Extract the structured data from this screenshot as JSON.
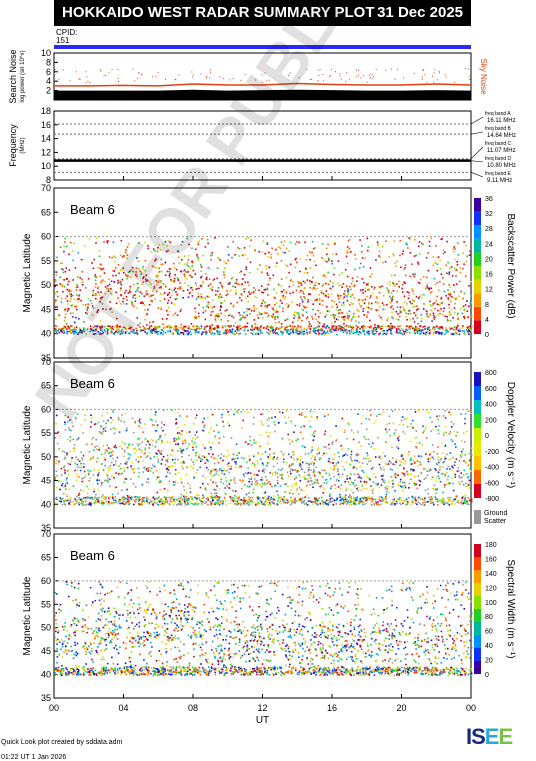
{
  "header": {
    "title": "HOKKAIDO WEST RADAR SUMMARY PLOT",
    "date": "31 Dec 2025"
  },
  "cpid": {
    "label": "CPID:",
    "value": "151"
  },
  "watermark": "NOT FOR PUBLICATION",
  "footer": {
    "credit": "Quick Look plot created by sddata.adm",
    "time": "01:22 UT 1 Jan 2026"
  },
  "logo": {
    "part1": "IS",
    "part2": "E",
    "part3": "E"
  },
  "chart_data": [
    {
      "type": "line",
      "name": "noise",
      "ylabel": "Search Noise",
      "ylabel_sub": "log power (sn 10^x)",
      "right_label": "Sky Noise",
      "yticks": [
        "2",
        "4",
        "6",
        "8",
        "10"
      ],
      "ylim": [
        0,
        10
      ],
      "xlim": [
        0,
        24
      ],
      "series": [
        {
          "name": "search",
          "x": [
            0,
            2,
            4,
            6,
            8,
            10,
            12,
            14,
            16,
            18,
            20,
            22,
            24
          ],
          "values": [
            2,
            2,
            2,
            2,
            2.2,
            2,
            2.1,
            2.2,
            2.1,
            2,
            2,
            2.1,
            2
          ]
        },
        {
          "name": "sky",
          "x": [
            0,
            2,
            4,
            6,
            8,
            10,
            12,
            14,
            16,
            18,
            20,
            22,
            24
          ],
          "values": [
            3,
            3,
            3.1,
            3,
            3.4,
            3.2,
            3.2,
            3.5,
            3.3,
            3.2,
            3.2,
            3.4,
            3.2
          ]
        }
      ]
    },
    {
      "type": "line",
      "name": "frequency",
      "ylabel": "Frequency",
      "ylabel_sub": "(MHz)",
      "yticks": [
        "8",
        "10",
        "12",
        "14",
        "16",
        "18"
      ],
      "ylim": [
        8,
        18
      ],
      "bands": [
        {
          "label": "freq band A",
          "value": "16.11 MHz",
          "freq": 16.11
        },
        {
          "label": "freq band B",
          "value": "14.64 MHz",
          "freq": 14.64
        },
        {
          "label": "freq band C",
          "value": "11.07 MHz",
          "freq": 11.07
        },
        {
          "label": "freq band D",
          "value": "10.80 MHz",
          "freq": 10.8
        },
        {
          "label": "freq band E",
          "value": "9.11 MHz",
          "freq": 9.11
        }
      ],
      "operating_freq": 10.8
    },
    {
      "type": "heatmap",
      "name": "power",
      "beam_label": "Beam 6",
      "ylabel": "Magnetic Latitude",
      "yticks": [
        "35",
        "40",
        "45",
        "50",
        "55",
        "60",
        "65",
        "70"
      ],
      "ylim": [
        35,
        70
      ],
      "colorbar_label": "Backscatter Power (dB)",
      "colorbar_ticks": [
        "0",
        "4",
        "8",
        "12",
        "16",
        "20",
        "24",
        "28",
        "32",
        "36"
      ],
      "colorbar_colors": [
        "#d4001f",
        "#ff4a00",
        "#ff9a00",
        "#e6d000",
        "#8ce000",
        "#1fd020",
        "#00b8a0",
        "#0090ff",
        "#1030ff",
        "#3a00a0"
      ]
    },
    {
      "type": "heatmap",
      "name": "velocity",
      "beam_label": "Beam 6",
      "ylabel": "Magnetic Latitude",
      "yticks": [
        "35",
        "40",
        "45",
        "50",
        "55",
        "60",
        "65",
        "70"
      ],
      "ylim": [
        35,
        70
      ],
      "colorbar_label": "Doppler Velocity (m s⁻¹)",
      "colorbar_ticks": [
        "-800",
        "-600",
        "-400",
        "-200",
        "0",
        "200",
        "400",
        "600",
        "800"
      ],
      "colorbar_colors": [
        "#d4001f",
        "#ff6a00",
        "#ffc000",
        "#e8e800",
        "#c8f000",
        "#30e030",
        "#00c0c0",
        "#0060ff",
        "#1a10c0"
      ],
      "ground_label": "Ground",
      "ground_label2": "Scatter",
      "ground_color": "#999999"
    },
    {
      "type": "heatmap",
      "name": "width",
      "beam_label": "Beam 6",
      "ylabel": "Magnetic Latitude",
      "yticks": [
        "35",
        "40",
        "45",
        "50",
        "55",
        "60",
        "65",
        "70"
      ],
      "ylim": [
        35,
        70
      ],
      "xlabel": "UT",
      "xticks": [
        "00",
        "04",
        "08",
        "12",
        "16",
        "20",
        "00"
      ],
      "colorbar_label": "Spectral Width (m s⁻¹)",
      "colorbar_ticks": [
        "0",
        "20",
        "40",
        "60",
        "80",
        "100",
        "120",
        "140",
        "160",
        "180"
      ],
      "colorbar_colors": [
        "#3a00a0",
        "#1030ff",
        "#0090ff",
        "#00b8a0",
        "#1fd020",
        "#8ce000",
        "#e6d000",
        "#ff9a00",
        "#ff4a00",
        "#d4001f"
      ]
    }
  ]
}
